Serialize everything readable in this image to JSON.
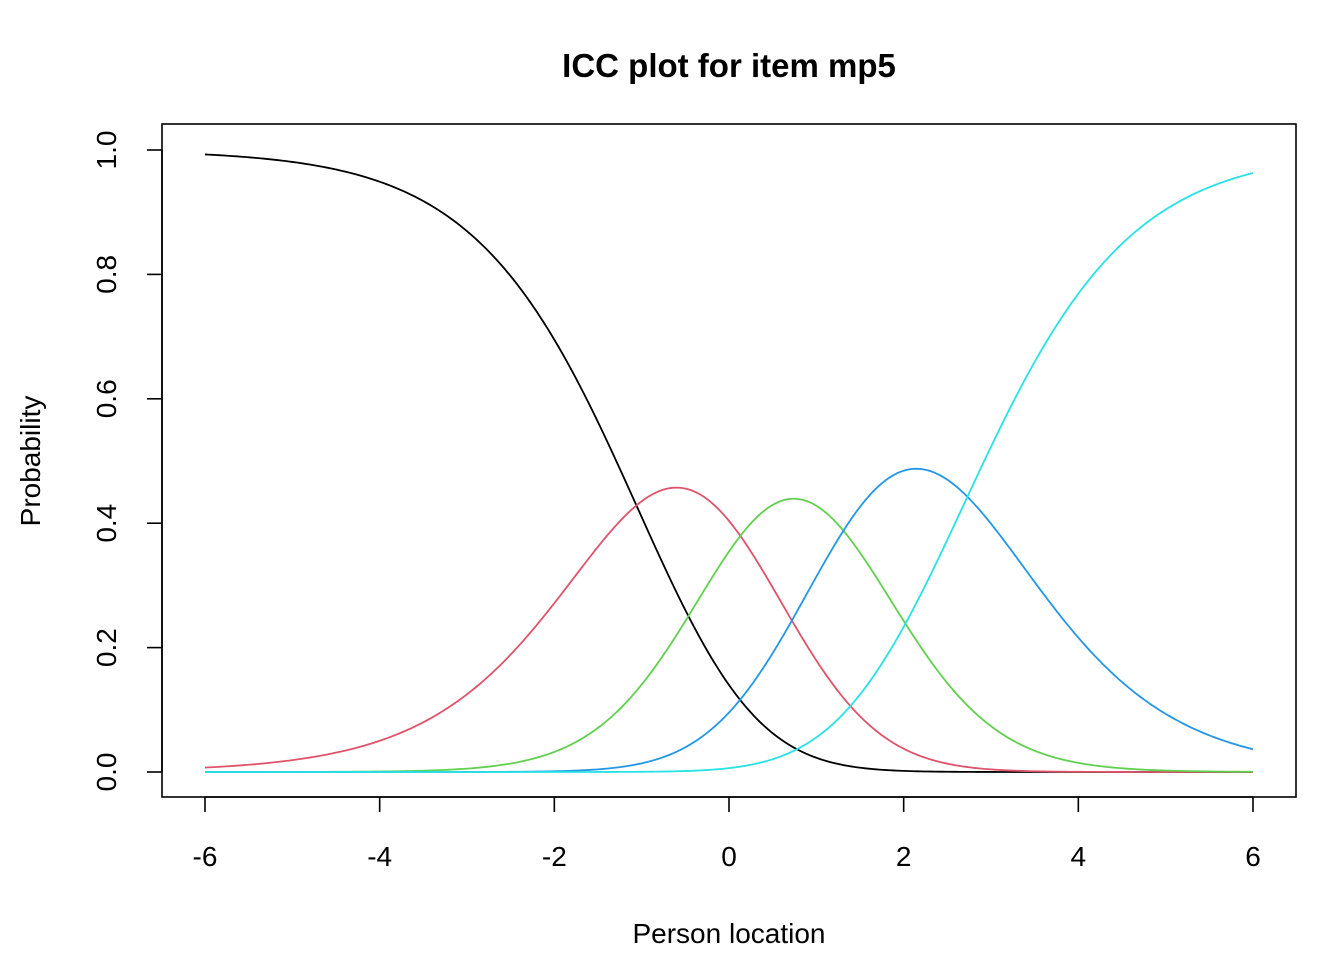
{
  "chart_data": {
    "type": "line",
    "title": "ICC plot for item mp5",
    "xlabel": "Person location",
    "ylabel": "Probability",
    "xlim": [
      -6,
      6
    ],
    "ylim": [
      0,
      1
    ],
    "x_ticks": [
      -6,
      -4,
      -2,
      0,
      2,
      4,
      6
    ],
    "x_tick_labels": [
      "-6",
      "-4",
      "-2",
      "0",
      "2",
      "4",
      "6"
    ],
    "y_ticks": [
      0,
      0.2,
      0.4,
      0.6,
      0.8,
      1
    ],
    "y_tick_labels": [
      "0.0",
      "0.2",
      "0.4",
      "0.6",
      "0.8",
      "1.0"
    ],
    "grid": false,
    "legend": "none",
    "thresholds": [
      -1.06,
      0.13,
      1.31,
      2.73
    ],
    "series": [
      {
        "category": 0,
        "color": "#000000"
      },
      {
        "category": 1,
        "color": "#DF536B"
      },
      {
        "category": 2,
        "color": "#61D04F"
      },
      {
        "category": 3,
        "color": "#2297E6"
      },
      {
        "category": 4,
        "color": "#28E2E5"
      }
    ]
  }
}
